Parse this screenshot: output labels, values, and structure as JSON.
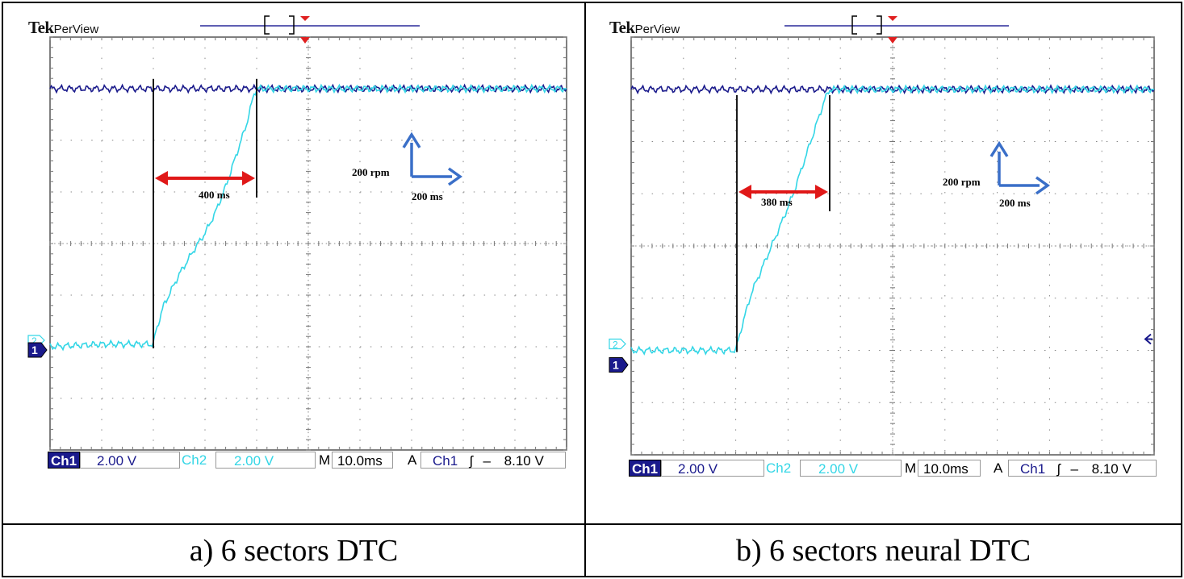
{
  "chart_data": [
    {
      "type": "line",
      "panel": "a",
      "caption": "a) 6 sectors DTC",
      "brand": "Tek",
      "brand_sub": "PerView",
      "status": {
        "ch1_label": "Ch1",
        "ch1_scale": "2.00 V",
        "ch2_label": "Ch2",
        "ch2_scale": "2.00 V",
        "time_label": "M",
        "time_scale": "10.0ms",
        "trigger_label": "A",
        "trigger_source": "Ch1",
        "trigger_slope": "ʃ",
        "trigger_level": "8.10 V"
      },
      "markers": {
        "ch1": "1",
        "ch2": "2"
      },
      "annotations": {
        "rise_time": "400 ms",
        "y_scale": "200 rpm",
        "x_scale": "200 ms"
      },
      "grid": {
        "divisions_x": 10,
        "divisions_y": 8
      },
      "series": [
        {
          "name": "Ch1",
          "color": "#1a1a8c",
          "x": [
            0,
            1,
            2,
            3,
            4,
            5,
            6,
            7,
            8,
            9,
            10
          ],
          "y": [
            7.0,
            7.0,
            7.0,
            7.0,
            7.0,
            7.0,
            7.0,
            7.0,
            7.0,
            7.0,
            7.0
          ]
        },
        {
          "name": "Ch2",
          "color": "#33d6e6",
          "x": [
            0,
            1.0,
            2.0,
            2.05,
            2.2,
            2.5,
            2.8,
            3.0,
            3.2,
            3.4,
            3.6,
            3.8,
            3.95,
            4.0,
            10.0
          ],
          "y": [
            2.0,
            2.05,
            2.05,
            2.3,
            2.8,
            3.4,
            3.9,
            4.2,
            4.6,
            5.1,
            5.7,
            6.3,
            6.9,
            7.0,
            7.0
          ]
        }
      ]
    },
    {
      "type": "line",
      "panel": "b",
      "caption": "b) 6 sectors neural DTC",
      "brand": "Tek",
      "brand_sub": "PerView",
      "status": {
        "ch1_label": "Ch1",
        "ch1_scale": "2.00 V",
        "ch2_label": "Ch2",
        "ch2_scale": "2.00 V",
        "time_label": "M",
        "time_scale": "10.0ms",
        "trigger_label": "A",
        "trigger_source": "Ch1",
        "trigger_slope": "ʃ",
        "trigger_level": "8.10 V"
      },
      "markers": {
        "ch1": "1",
        "ch2": "2"
      },
      "annotations": {
        "rise_time": "380 ms",
        "y_scale": "200 rpm",
        "x_scale": "200 ms"
      },
      "grid": {
        "divisions_x": 10,
        "divisions_y": 8
      },
      "series": [
        {
          "name": "Ch1",
          "color": "#1a1a8c",
          "x": [
            0,
            1,
            2,
            3,
            4,
            5,
            6,
            7,
            8,
            9,
            10
          ],
          "y": [
            7.0,
            7.0,
            7.0,
            7.0,
            7.0,
            7.0,
            7.0,
            7.0,
            7.0,
            7.0,
            7.0
          ]
        },
        {
          "name": "Ch2",
          "color": "#33d6e6",
          "x": [
            0,
            1.0,
            2.0,
            2.1,
            2.3,
            2.6,
            2.9,
            3.1,
            3.3,
            3.5,
            3.7,
            3.8,
            10.0
          ],
          "y": [
            2.0,
            2.0,
            2.0,
            2.4,
            3.1,
            3.8,
            4.5,
            5.0,
            5.6,
            6.2,
            6.8,
            7.0,
            7.0
          ]
        }
      ]
    }
  ]
}
